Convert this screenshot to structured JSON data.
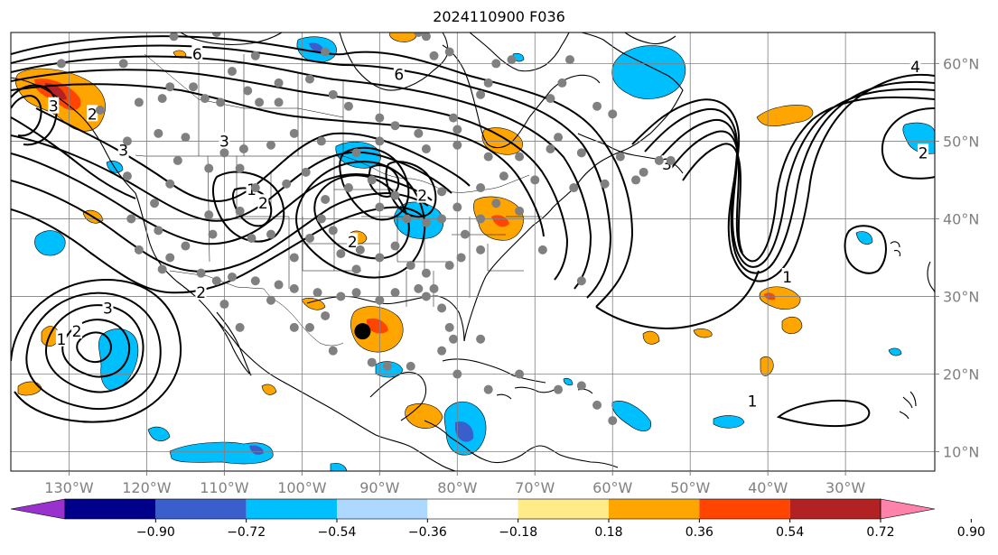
{
  "title": "2024110900 F036",
  "map": {
    "projection": "equirectangular",
    "lon_range": [
      -137.5,
      -18.5
    ],
    "lat_range": [
      7.5,
      64.0
    ],
    "longitude_ticks": [
      {
        "lon": -130,
        "label": "130°W"
      },
      {
        "lon": -120,
        "label": "120°W"
      },
      {
        "lon": -110,
        "label": "110°W"
      },
      {
        "lon": -100,
        "label": "100°W"
      },
      {
        "lon": -90,
        "label": "90°W"
      },
      {
        "lon": -80,
        "label": "80°W"
      },
      {
        "lon": -70,
        "label": "70°W"
      },
      {
        "lon": -60,
        "label": "60°W"
      },
      {
        "lon": -50,
        "label": "50°W"
      },
      {
        "lon": -40,
        "label": "40°W"
      },
      {
        "lon": -30,
        "label": "30°W"
      }
    ],
    "latitude_ticks": [
      {
        "lat": 60,
        "label": "60°N"
      },
      {
        "lat": 50,
        "label": "50°N"
      },
      {
        "lat": 40,
        "label": "40°N"
      },
      {
        "lat": 30,
        "label": "30°N"
      },
      {
        "lat": 20,
        "label": "20°N"
      },
      {
        "lat": 10,
        "label": "10°N"
      }
    ],
    "gridlines": true,
    "tick_color": "#808080",
    "contour_labels": [
      {
        "text": "6",
        "lon": -113.5,
        "lat": 61.2
      },
      {
        "text": "6",
        "lon": -87.5,
        "lat": 58.6
      },
      {
        "text": "4",
        "lon": -21.0,
        "lat": 59.6
      },
      {
        "text": "3",
        "lon": -132.0,
        "lat": 54.5
      },
      {
        "text": "3",
        "lon": -123.0,
        "lat": 48.8
      },
      {
        "text": "3",
        "lon": -110.0,
        "lat": 50.0
      },
      {
        "text": "2",
        "lon": -127.0,
        "lat": 53.5
      },
      {
        "text": "2",
        "lon": -105.0,
        "lat": 42.0
      },
      {
        "text": "1",
        "lon": -106.5,
        "lat": 43.8
      },
      {
        "text": "2",
        "lon": -93.5,
        "lat": 37.0
      },
      {
        "text": "2",
        "lon": -84.5,
        "lat": 43.0
      },
      {
        "text": "3",
        "lon": -53.0,
        "lat": 47.0
      },
      {
        "text": "2",
        "lon": -20.0,
        "lat": 48.5
      },
      {
        "text": "1",
        "lon": -37.5,
        "lat": 32.5
      },
      {
        "text": "3",
        "lon": -125.0,
        "lat": 28.5
      },
      {
        "text": "2",
        "lon": -129.0,
        "lat": 25.5
      },
      {
        "text": "1",
        "lon": -131.0,
        "lat": 24.5
      },
      {
        "text": "1",
        "lon": -42.0,
        "lat": 16.5
      },
      {
        "text": "2",
        "lon": -113.0,
        "lat": 30.5
      }
    ],
    "storm_center": {
      "lon": -92.2,
      "lat": 25.5
    },
    "stations": [
      [
        -131,
        60
      ],
      [
        -123,
        60
      ],
      [
        -116.5,
        63.5
      ],
      [
        -111,
        64
      ],
      [
        -106,
        61
      ],
      [
        -97,
        61.5
      ],
      [
        -85,
        64
      ],
      [
        -84,
        63.5
      ],
      [
        -75,
        60
      ],
      [
        -81,
        61.5
      ],
      [
        -83,
        61
      ],
      [
        -103,
        57.5
      ],
      [
        -103,
        55
      ],
      [
        -109,
        59
      ],
      [
        -126,
        54
      ],
      [
        -121,
        55
      ],
      [
        -118,
        55.5
      ],
      [
        -117,
        57
      ],
      [
        -114,
        57
      ],
      [
        -112.5,
        55.5
      ],
      [
        -110.5,
        55
      ],
      [
        -107,
        56.5
      ],
      [
        -105.5,
        55
      ],
      [
        -99,
        58
      ],
      [
        -96,
        56
      ],
      [
        -94,
        54.5
      ],
      [
        -90,
        53
      ],
      [
        -85,
        51
      ],
      [
        -80.5,
        53
      ],
      [
        -80,
        51.5
      ],
      [
        -77,
        56
      ],
      [
        -76,
        57.5
      ],
      [
        -73,
        60.5
      ],
      [
        -65.5,
        60.5
      ],
      [
        -66.5,
        57.5
      ],
      [
        -68,
        55.5
      ],
      [
        -62,
        54.5
      ],
      [
        -60,
        53.5
      ],
      [
        -67,
        50.5
      ],
      [
        -122.5,
        50
      ],
      [
        -118.5,
        51
      ],
      [
        -115,
        50.5
      ],
      [
        -110,
        48.5
      ],
      [
        -107.5,
        49
      ],
      [
        -104,
        49.5
      ],
      [
        -101,
        51
      ],
      [
        -97.5,
        50
      ],
      [
        -93,
        48.5
      ],
      [
        -90,
        50
      ],
      [
        -88,
        52
      ],
      [
        -84,
        49
      ],
      [
        -80,
        49.5
      ],
      [
        -76,
        48
      ],
      [
        -72,
        48
      ],
      [
        -68,
        49
      ],
      [
        -64,
        48.5
      ],
      [
        -59,
        48
      ],
      [
        -54,
        47.5
      ],
      [
        -57,
        45
      ],
      [
        -61,
        44.5
      ],
      [
        -65,
        44
      ],
      [
        -70,
        45
      ],
      [
        -74,
        45.5
      ],
      [
        -77,
        44
      ],
      [
        -82,
        43.5
      ],
      [
        -122.5,
        45.5
      ],
      [
        -122,
        40
      ],
      [
        -119,
        42
      ],
      [
        -117,
        44.5
      ],
      [
        -116,
        47.5
      ],
      [
        -112,
        46.5
      ],
      [
        -108,
        46.5
      ],
      [
        -106,
        44
      ],
      [
        -102,
        44.5
      ],
      [
        -99.5,
        46
      ],
      [
        -97,
        42.5
      ],
      [
        -97.5,
        40
      ],
      [
        -94,
        44
      ],
      [
        -91,
        45
      ],
      [
        -90,
        41.5
      ],
      [
        -88,
        43
      ],
      [
        -86.5,
        40
      ],
      [
        -84,
        39.5
      ],
      [
        -82,
        40
      ],
      [
        -80,
        41.5
      ],
      [
        -77,
        40
      ],
      [
        -75,
        42
      ],
      [
        -72,
        41
      ],
      [
        -121,
        36
      ],
      [
        -118.5,
        38.5
      ],
      [
        -117,
        35
      ],
      [
        -115,
        36.5
      ],
      [
        -112,
        40.5
      ],
      [
        -111.5,
        38
      ],
      [
        -108,
        41
      ],
      [
        -106.5,
        37.5
      ],
      [
        -104,
        38
      ],
      [
        -101,
        35
      ],
      [
        -99,
        37.5
      ],
      [
        -96,
        38.5
      ],
      [
        -95,
        35.5
      ],
      [
        -93,
        33.5
      ],
      [
        -92.5,
        36
      ],
      [
        -90,
        35
      ],
      [
        -88,
        36.5
      ],
      [
        -86,
        34
      ],
      [
        -84,
        33
      ],
      [
        -83,
        31
      ],
      [
        -81,
        34
      ],
      [
        -79.5,
        35
      ],
      [
        -77,
        36
      ],
      [
        -79,
        38
      ],
      [
        -118,
        33.5
      ],
      [
        -113,
        33
      ],
      [
        -111,
        32
      ],
      [
        -109,
        32.5
      ],
      [
        -106,
        32
      ],
      [
        -103,
        31.5
      ],
      [
        -101,
        31
      ],
      [
        -98,
        30.5
      ],
      [
        -95,
        30
      ],
      [
        -97,
        27.5
      ],
      [
        -99,
        26
      ],
      [
        -93,
        30.5
      ],
      [
        -90,
        29.5
      ],
      [
        -88,
        30.5
      ],
      [
        -85,
        31
      ],
      [
        -82,
        28.5
      ],
      [
        -81,
        26
      ],
      [
        -80.5,
        24.5
      ],
      [
        -84,
        30
      ],
      [
        -104,
        29.5
      ],
      [
        -110,
        29
      ],
      [
        -108,
        26
      ],
      [
        -101,
        26
      ],
      [
        -96,
        23
      ],
      [
        -91,
        21.5
      ],
      [
        -89,
        21
      ],
      [
        -86,
        21
      ],
      [
        -82,
        23
      ],
      [
        -77,
        24.5
      ],
      [
        -72,
        20
      ],
      [
        -67,
        18
      ],
      [
        -64,
        18.5
      ],
      [
        -60,
        14
      ],
      [
        -62,
        16
      ],
      [
        -80,
        20
      ],
      [
        -76,
        18
      ],
      [
        -69,
        36
      ],
      [
        -56,
        46
      ],
      [
        -52.5,
        47.5
      ],
      [
        -64,
        32
      ]
    ]
  },
  "colorbar": {
    "labels": [
      "−0.90",
      "−0.72",
      "−0.54",
      "−0.36",
      "−0.18",
      "0.18",
      "0.36",
      "0.54",
      "0.72",
      "0.90"
    ],
    "colors": [
      "#9932cc",
      "#00008b",
      "#3a5fcd",
      "#00bfff",
      "#add8ff",
      "#ffffff",
      "#ffeb87",
      "#ffa500",
      "#ff4500",
      "#b22222",
      "#ff82ab"
    ],
    "extend": "both"
  },
  "palette": {
    "neg_strong": "#3a5fcd",
    "neg": "#00bfff",
    "pos": "#ffa500",
    "pos_strong": "#ff4500",
    "pos_max": "#b22222"
  }
}
